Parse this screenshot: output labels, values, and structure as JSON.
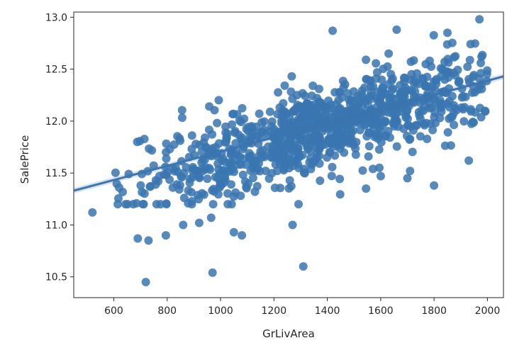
{
  "chart_data": {
    "type": "scatter",
    "title": "",
    "xlabel": "GrLivArea",
    "ylabel": "SalePrice",
    "xlim": [
      450,
      2060
    ],
    "ylim": [
      10.3,
      13.05
    ],
    "xticks": [
      600,
      800,
      1000,
      1200,
      1400,
      1600,
      1800,
      2000
    ],
    "xtick_labels": [
      "600",
      "800",
      "1000",
      "1200",
      "1400",
      "1600",
      "1800",
      "2000"
    ],
    "yticks": [
      10.5,
      11.0,
      11.5,
      12.0,
      12.5,
      13.0
    ],
    "ytick_labels": [
      "10.5",
      "11.0",
      "11.5",
      "12.0",
      "12.5",
      "13.0"
    ],
    "grid": false,
    "legend": "none",
    "point_color": "#3a75b0",
    "regression_line": {
      "x": [
        450,
        2060
      ],
      "y": [
        11.33,
        12.43
      ],
      "color": "#3a75b0"
    },
    "notable_points": {
      "x": [
        520,
        620,
        690,
        720,
        730,
        795,
        860,
        920,
        965,
        970,
        1050,
        1080,
        1270,
        1310,
        1420,
        1545,
        1595,
        1600,
        1630,
        1660,
        1700,
        1710,
        1800,
        1850,
        1930,
        1970
      ],
      "y": [
        11.12,
        11.36,
        10.87,
        10.45,
        10.85,
        10.9,
        11.0,
        11.02,
        11.07,
        10.54,
        10.93,
        10.9,
        11.0,
        10.6,
        12.87,
        11.35,
        11.55,
        11.47,
        12.65,
        12.88,
        11.45,
        11.52,
        11.38,
        12.85,
        11.62,
        12.98
      ]
    },
    "cloud": {
      "n_points": 1000,
      "x_range": [
        600,
        2000
      ],
      "x_mean": 1420,
      "x_sd": 380,
      "intercept": 10.9,
      "slope": 0.00074,
      "noise_sd": 0.2
    }
  }
}
